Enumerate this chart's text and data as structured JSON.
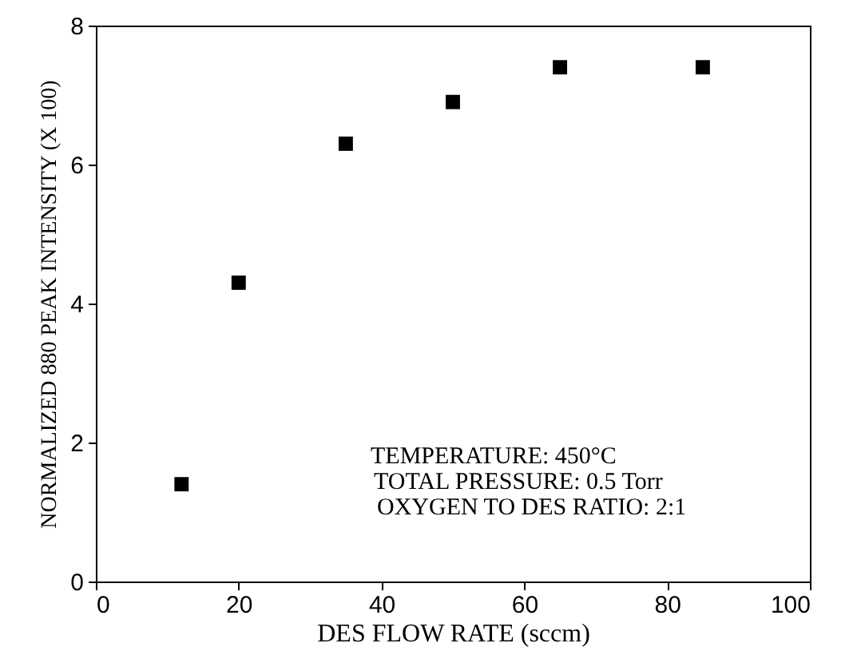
{
  "chart_data": {
    "type": "scatter",
    "xlabel": "DES FLOW RATE (sccm)",
    "ylabel": "NORMALIZED 880 PEAK INTENSITY (X 100)",
    "x": [
      12,
      20,
      35,
      50,
      65,
      85
    ],
    "series": [
      {
        "color": "#000000",
        "values": [
          1.4,
          4.3,
          6.3,
          6.9,
          7.4,
          7.4
        ]
      }
    ],
    "xlim": [
      0,
      100
    ],
    "xticks": [
      0,
      20,
      40,
      60,
      80,
      100
    ],
    "ylim": [
      0,
      8
    ],
    "yticks": [
      0,
      2,
      4,
      6,
      8
    ],
    "grid": false,
    "marker": "square",
    "annotations": [
      "TEMPERATURE: 450°C",
      "TOTAL PRESSURE: 0.5 Torr",
      "OXYGEN TO DES RATIO:  2:1"
    ]
  }
}
